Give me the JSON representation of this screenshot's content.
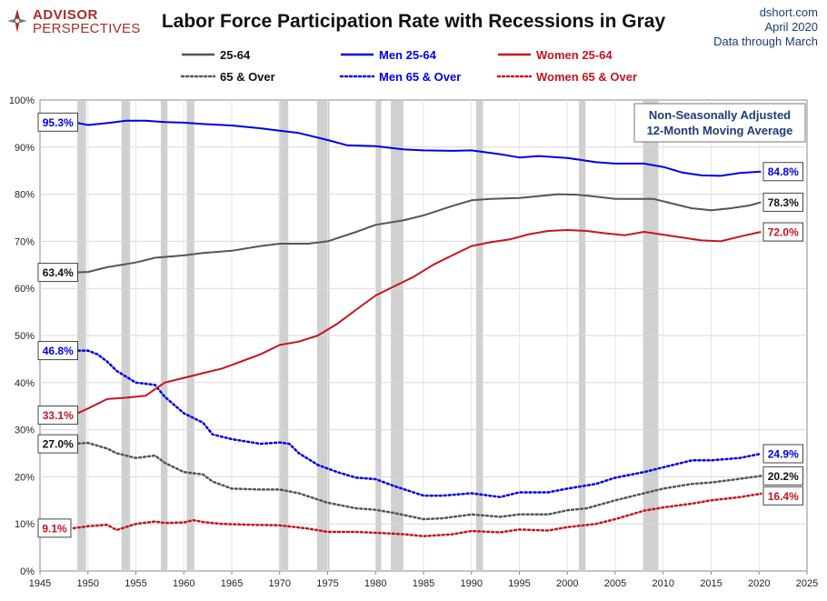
{
  "brand": {
    "line1": "ADVISOR",
    "line2": "PERSPECTIVES",
    "color": "#a82c26"
  },
  "credit": {
    "site": "dshort.com",
    "date": "April 2020",
    "note": "Data through March"
  },
  "note_box": {
    "line1": "Non-Seasonally Adjusted",
    "line2": "12-Month Moving Average"
  },
  "chart_data": {
    "type": "line",
    "title": "Labor Force Participation Rate with Recessions in Gray",
    "xlim": [
      1945,
      2025
    ],
    "ylim": [
      0,
      100
    ],
    "x_ticks": [
      "1945",
      "1950",
      "1955",
      "1960",
      "1965",
      "1970",
      "1975",
      "1980",
      "1985",
      "1990",
      "1995",
      "2000",
      "2005",
      "2010",
      "2015",
      "2020",
      "2025"
    ],
    "y_ticks": [
      "0%",
      "10%",
      "20%",
      "30%",
      "40%",
      "50%",
      "60%",
      "70%",
      "80%",
      "90%",
      "100%"
    ],
    "grid": true,
    "legend_position": "top",
    "recessions": [
      [
        1948.9,
        1949.8
      ],
      [
        1953.5,
        1954.4
      ],
      [
        1957.6,
        1958.3
      ],
      [
        1960.3,
        1961.1
      ],
      [
        1969.9,
        1970.9
      ],
      [
        1973.9,
        1975.2
      ],
      [
        1980.0,
        1980.6
      ],
      [
        1981.6,
        1982.9
      ],
      [
        1990.5,
        1991.2
      ],
      [
        2001.2,
        2001.9
      ],
      [
        2007.9,
        2009.5
      ]
    ],
    "series": [
      {
        "name": "25-64",
        "color": "#555555",
        "style": "solid",
        "start_label": "63.4%",
        "end_label": "78.3%",
        "points": [
          [
            1948.5,
            63.4
          ],
          [
            1950,
            63.5
          ],
          [
            1952,
            64.5
          ],
          [
            1955,
            65.5
          ],
          [
            1957,
            66.5
          ],
          [
            1960,
            67
          ],
          [
            1962,
            67.5
          ],
          [
            1965,
            68
          ],
          [
            1968,
            69
          ],
          [
            1970,
            69.5
          ],
          [
            1973,
            69.5
          ],
          [
            1975,
            70
          ],
          [
            1978,
            72
          ],
          [
            1980,
            73.5
          ],
          [
            1983,
            74.5
          ],
          [
            1985,
            75.5
          ],
          [
            1988,
            77.5
          ],
          [
            1990,
            78.7
          ],
          [
            1992,
            79
          ],
          [
            1995,
            79.2
          ],
          [
            1997,
            79.6
          ],
          [
            1999,
            80
          ],
          [
            2001,
            79.9
          ],
          [
            2003,
            79.5
          ],
          [
            2005,
            79
          ],
          [
            2007,
            79
          ],
          [
            2009,
            79
          ],
          [
            2011,
            78
          ],
          [
            2013,
            77
          ],
          [
            2015,
            76.6
          ],
          [
            2017,
            77
          ],
          [
            2019,
            77.6
          ],
          [
            2020.2,
            78.3
          ]
        ]
      },
      {
        "name": "65 & Over",
        "color": "#555555",
        "style": "dotted",
        "start_label": "27.0%",
        "end_label": "20.2%",
        "points": [
          [
            1948.5,
            27
          ],
          [
            1950,
            27.2
          ],
          [
            1952,
            26
          ],
          [
            1953,
            25
          ],
          [
            1955,
            24
          ],
          [
            1957,
            24.5
          ],
          [
            1958,
            23
          ],
          [
            1960,
            21
          ],
          [
            1962,
            20.5
          ],
          [
            1963,
            19
          ],
          [
            1965,
            17.5
          ],
          [
            1968,
            17.3
          ],
          [
            1970,
            17.3
          ],
          [
            1972,
            16.5
          ],
          [
            1975,
            14.5
          ],
          [
            1978,
            13.3
          ],
          [
            1980,
            13
          ],
          [
            1982,
            12.3
          ],
          [
            1985,
            11
          ],
          [
            1987,
            11.2
          ],
          [
            1990,
            12
          ],
          [
            1993,
            11.5
          ],
          [
            1995,
            12
          ],
          [
            1998,
            12
          ],
          [
            2000,
            12.9
          ],
          [
            2002,
            13.3
          ],
          [
            2005,
            15
          ],
          [
            2008,
            16.5
          ],
          [
            2010,
            17.5
          ],
          [
            2013,
            18.5
          ],
          [
            2015,
            18.8
          ],
          [
            2017,
            19.3
          ],
          [
            2020.2,
            20.2
          ]
        ]
      },
      {
        "name": "Men 25-64",
        "color": "#0000e6",
        "style": "solid",
        "start_label": "95.3%",
        "end_label": "84.8%",
        "points": [
          [
            1948.5,
            95.3
          ],
          [
            1950,
            94.7
          ],
          [
            1952,
            95.1
          ],
          [
            1954,
            95.6
          ],
          [
            1956,
            95.6
          ],
          [
            1958,
            95.3
          ],
          [
            1960,
            95.2
          ],
          [
            1962,
            94.9
          ],
          [
            1965,
            94.6
          ],
          [
            1968,
            94
          ],
          [
            1970,
            93.5
          ],
          [
            1972,
            93
          ],
          [
            1975,
            91.5
          ],
          [
            1977,
            90.4
          ],
          [
            1980,
            90.2
          ],
          [
            1983,
            89.5
          ],
          [
            1985,
            89.3
          ],
          [
            1988,
            89.2
          ],
          [
            1990,
            89.3
          ],
          [
            1993,
            88.5
          ],
          [
            1995,
            87.8
          ],
          [
            1997,
            88.1
          ],
          [
            2000,
            87.7
          ],
          [
            2003,
            86.8
          ],
          [
            2005,
            86.5
          ],
          [
            2008,
            86.5
          ],
          [
            2010,
            85.8
          ],
          [
            2012,
            84.6
          ],
          [
            2014,
            84
          ],
          [
            2016,
            83.9
          ],
          [
            2018,
            84.5
          ],
          [
            2020.2,
            84.8
          ]
        ]
      },
      {
        "name": "Men 65 & Over",
        "color": "#0000e6",
        "style": "dotted",
        "start_label": "46.8%",
        "end_label": "24.9%",
        "points": [
          [
            1948.5,
            46.8
          ],
          [
            1950,
            46.8
          ],
          [
            1951,
            46
          ],
          [
            1952,
            44.5
          ],
          [
            1953,
            42.5
          ],
          [
            1955,
            40
          ],
          [
            1957,
            39.5
          ],
          [
            1958,
            37
          ],
          [
            1960,
            33.5
          ],
          [
            1962,
            31.5
          ],
          [
            1963,
            29
          ],
          [
            1965,
            28
          ],
          [
            1968,
            27
          ],
          [
            1970,
            27.3
          ],
          [
            1971,
            27
          ],
          [
            1972,
            25
          ],
          [
            1974,
            22.5
          ],
          [
            1976,
            21
          ],
          [
            1978,
            19.8
          ],
          [
            1980,
            19.5
          ],
          [
            1982,
            18
          ],
          [
            1985,
            16
          ],
          [
            1987,
            16
          ],
          [
            1990,
            16.5
          ],
          [
            1993,
            15.7
          ],
          [
            1995,
            16.7
          ],
          [
            1998,
            16.7
          ],
          [
            2000,
            17.5
          ],
          [
            2003,
            18.5
          ],
          [
            2005,
            19.8
          ],
          [
            2008,
            21
          ],
          [
            2010,
            22
          ],
          [
            2013,
            23.5
          ],
          [
            2015,
            23.5
          ],
          [
            2018,
            24
          ],
          [
            2020.2,
            24.9
          ]
        ]
      },
      {
        "name": "Women 25-64",
        "color": "#c8141e",
        "style": "solid",
        "start_label": "33.1%",
        "end_label": "72.0%",
        "points": [
          [
            1948.5,
            33.1
          ],
          [
            1950,
            34.5
          ],
          [
            1952,
            36.5
          ],
          [
            1954,
            36.8
          ],
          [
            1956,
            37.2
          ],
          [
            1958,
            40
          ],
          [
            1960,
            41
          ],
          [
            1962,
            42
          ],
          [
            1964,
            43
          ],
          [
            1966,
            44.5
          ],
          [
            1968,
            46
          ],
          [
            1970,
            48
          ],
          [
            1972,
            48.7
          ],
          [
            1974,
            50
          ],
          [
            1976,
            52.5
          ],
          [
            1978,
            55.5
          ],
          [
            1980,
            58.5
          ],
          [
            1982,
            60.5
          ],
          [
            1984,
            62.5
          ],
          [
            1986,
            65
          ],
          [
            1988,
            67
          ],
          [
            1990,
            69
          ],
          [
            1992,
            69.8
          ],
          [
            1994,
            70.4
          ],
          [
            1996,
            71.5
          ],
          [
            1998,
            72.2
          ],
          [
            2000,
            72.4
          ],
          [
            2002,
            72.2
          ],
          [
            2004,
            71.7
          ],
          [
            2006,
            71.3
          ],
          [
            2008,
            72
          ],
          [
            2010,
            71.4
          ],
          [
            2012,
            70.8
          ],
          [
            2014,
            70.2
          ],
          [
            2016,
            70
          ],
          [
            2018,
            71
          ],
          [
            2020.2,
            72
          ]
        ]
      },
      {
        "name": "Women 65 & Over",
        "color": "#c8141e",
        "style": "dotted",
        "start_label": "9.1%",
        "end_label": "16.4%",
        "points": [
          [
            1948.5,
            9.1
          ],
          [
            1950,
            9.5
          ],
          [
            1952,
            9.8
          ],
          [
            1953,
            8.7
          ],
          [
            1955,
            10
          ],
          [
            1957,
            10.5
          ],
          [
            1958,
            10.2
          ],
          [
            1960,
            10.3
          ],
          [
            1961,
            10.8
          ],
          [
            1962,
            10.4
          ],
          [
            1964,
            10
          ],
          [
            1967,
            9.8
          ],
          [
            1970,
            9.7
          ],
          [
            1973,
            9
          ],
          [
            1975,
            8.3
          ],
          [
            1978,
            8.3
          ],
          [
            1980,
            8.1
          ],
          [
            1983,
            7.8
          ],
          [
            1985,
            7.4
          ],
          [
            1988,
            7.8
          ],
          [
            1990,
            8.5
          ],
          [
            1993,
            8.2
          ],
          [
            1995,
            8.8
          ],
          [
            1998,
            8.6
          ],
          [
            2000,
            9.3
          ],
          [
            2003,
            10
          ],
          [
            2005,
            11
          ],
          [
            2008,
            12.8
          ],
          [
            2010,
            13.5
          ],
          [
            2013,
            14.3
          ],
          [
            2015,
            15
          ],
          [
            2018,
            15.7
          ],
          [
            2020.2,
            16.4
          ]
        ]
      }
    ]
  }
}
